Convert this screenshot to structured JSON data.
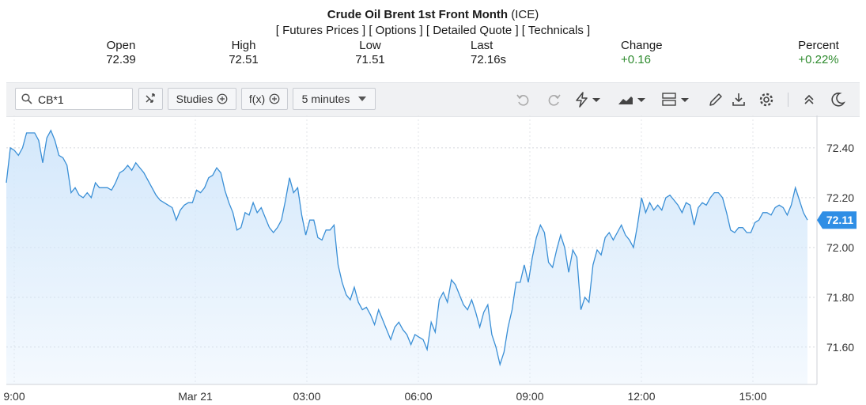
{
  "header": {
    "title": "Crude Oil Brent 1st Front Month",
    "exchange": "(ICE)",
    "links": [
      "[ Futures Prices ]",
      "[ Options ]",
      "[ Detailed Quote ]",
      "[ Technicals ]"
    ]
  },
  "quote": [
    {
      "label": "Open",
      "value": "72.39",
      "positive": false
    },
    {
      "label": "High",
      "value": "72.51",
      "positive": false
    },
    {
      "label": "Low",
      "value": "71.51",
      "positive": false
    },
    {
      "label": "Last",
      "value": "72.16s",
      "positive": false
    },
    {
      "label": "Change",
      "value": "+0.16",
      "positive": true
    },
    {
      "label": "Percent",
      "value": "+0.22%",
      "positive": true
    }
  ],
  "toolbar": {
    "symbol_value": "CB*1",
    "studies_label": "Studies",
    "fx_label": "f(x)",
    "interval_label": "5 minutes",
    "icons": [
      "search-icon",
      "shuffle-icon",
      "undo-icon",
      "redo-icon",
      "lightning-icon",
      "area-chart-icon",
      "layout-icon",
      "pencil-icon",
      "download-icon",
      "gear-icon",
      "collapse-icon",
      "moon-icon"
    ]
  },
  "colors": {
    "line": "#3a8fd6",
    "fill": "#d4e8fb",
    "positive": "#2e8b2e",
    "last_badge": "#2f8ee5"
  },
  "chart_data": {
    "type": "area",
    "title": "",
    "xlabel": "",
    "ylabel": "",
    "ylim": [
      71.45,
      72.53
    ],
    "grid": true,
    "y_ticks": [
      "72.40",
      "72.20",
      "72.00",
      "71.80",
      "71.60"
    ],
    "x_ticks": [
      "9:00",
      "Mar 21",
      "03:00",
      "06:00",
      "09:00",
      "12:00",
      "15:00"
    ],
    "last_value": "72.11",
    "series": [
      {
        "values": [
          72.26,
          72.4,
          72.39,
          72.37,
          72.4,
          72.46,
          72.46,
          72.46,
          72.43,
          72.34,
          72.44,
          72.47,
          72.43,
          72.37,
          72.36,
          72.33,
          72.22,
          72.24,
          72.21,
          72.2,
          72.22,
          72.2,
          72.26,
          72.24,
          72.24,
          72.24,
          72.23,
          72.26,
          72.3,
          72.31,
          72.33,
          72.31,
          72.34,
          72.32,
          72.3,
          72.27,
          72.24,
          72.21,
          72.19,
          72.18,
          72.17,
          72.16,
          72.11,
          72.15,
          72.17,
          72.18,
          72.18,
          72.23,
          72.22,
          72.24,
          72.28,
          72.29,
          72.32,
          72.3,
          72.23,
          72.18,
          72.14,
          72.07,
          72.08,
          72.14,
          72.13,
          72.18,
          72.14,
          72.16,
          72.12,
          72.08,
          72.06,
          72.08,
          72.11,
          72.19,
          72.28,
          72.22,
          72.24,
          72.13,
          72.05,
          72.11,
          72.11,
          72.04,
          72.03,
          72.07,
          72.07,
          72.09,
          71.93,
          71.86,
          71.81,
          71.79,
          71.84,
          71.78,
          71.75,
          71.76,
          71.73,
          71.69,
          71.75,
          71.71,
          71.67,
          71.63,
          71.68,
          71.7,
          71.67,
          71.65,
          71.61,
          71.65,
          71.64,
          71.63,
          71.59,
          71.7,
          71.66,
          71.79,
          71.82,
          71.78,
          71.87,
          71.85,
          71.81,
          71.77,
          71.75,
          71.79,
          71.74,
          71.68,
          71.74,
          71.77,
          71.65,
          71.6,
          71.53,
          71.58,
          71.68,
          71.75,
          71.86,
          71.86,
          71.93,
          71.86,
          71.96,
          72.04,
          72.09,
          72.06,
          71.94,
          71.92,
          71.99,
          72.05,
          72.0,
          71.9,
          71.99,
          71.96,
          71.75,
          71.8,
          71.78,
          71.93,
          71.99,
          71.97,
          72.04,
          72.06,
          72.03,
          72.06,
          72.09,
          72.05,
          72.03,
          72.0,
          72.09,
          72.2,
          72.14,
          72.18,
          72.15,
          72.17,
          72.15,
          72.2,
          72.21,
          72.19,
          72.17,
          72.14,
          72.18,
          72.17,
          72.09,
          72.16,
          72.18,
          72.17,
          72.2,
          72.22,
          72.22,
          72.2,
          72.14,
          72.07,
          72.06,
          72.08,
          72.08,
          72.06,
          72.06,
          72.1,
          72.11,
          72.14,
          72.14,
          72.13,
          72.16,
          72.17,
          72.16,
          72.13,
          72.17,
          72.24,
          72.19,
          72.14,
          72.11
        ]
      }
    ]
  }
}
